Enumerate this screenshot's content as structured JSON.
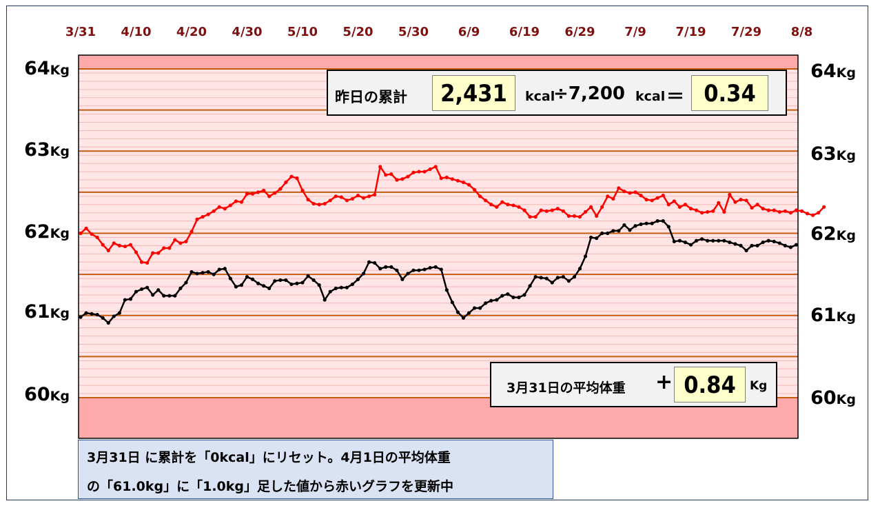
{
  "chart_data": {
    "type": "line",
    "x_tick_labels": [
      "3/31",
      "4/10",
      "4/20",
      "4/30",
      "5/10",
      "5/20",
      "5/30",
      "6/9",
      "6/19",
      "6/29",
      "7/9",
      "7/19",
      "7/29",
      "8/8"
    ],
    "y_tick_labels": [
      "64",
      "63",
      "62",
      "61",
      "60"
    ],
    "y_unit": "Kg",
    "ylim": [
      59.5,
      64.15
    ],
    "x_start": "3/31",
    "grid": true,
    "series": [
      {
        "color": "#ff0000",
        "values": [
          62.0,
          62.06,
          61.99,
          61.95,
          61.86,
          61.79,
          61.88,
          61.85,
          61.84,
          61.86,
          61.77,
          61.65,
          61.64,
          61.76,
          61.76,
          61.82,
          61.82,
          61.92,
          61.88,
          61.9,
          62.02,
          62.17,
          62.2,
          62.23,
          62.27,
          62.32,
          62.3,
          62.34,
          62.39,
          62.38,
          62.48,
          62.48,
          62.5,
          62.52,
          62.45,
          62.49,
          62.54,
          62.62,
          62.69,
          62.67,
          62.52,
          62.41,
          62.36,
          62.35,
          62.36,
          62.4,
          62.45,
          62.44,
          62.4,
          62.42,
          62.46,
          62.43,
          62.45,
          62.47,
          62.81,
          62.71,
          62.72,
          62.65,
          62.66,
          62.69,
          62.74,
          62.75,
          62.75,
          62.78,
          62.81,
          62.67,
          62.68,
          62.66,
          62.64,
          62.62,
          62.59,
          62.53,
          62.45,
          62.4,
          62.35,
          62.32,
          62.38,
          62.35,
          62.34,
          62.32,
          62.28,
          62.2,
          62.2,
          62.28,
          62.27,
          62.28,
          62.3,
          62.27,
          62.21,
          62.21,
          62.2,
          62.26,
          62.32,
          62.21,
          62.32,
          62.45,
          62.42,
          62.55,
          62.51,
          62.49,
          62.5,
          62.46,
          62.41,
          62.4,
          62.43,
          62.46,
          62.35,
          62.39,
          62.32,
          62.35,
          62.3,
          62.28,
          62.25,
          62.26,
          62.27,
          62.37,
          62.26,
          62.47,
          62.38,
          62.41,
          62.4,
          62.31,
          62.35,
          62.3,
          62.28,
          62.28,
          62.26,
          62.27,
          62.25,
          62.28,
          62.27,
          62.24,
          62.22,
          62.25,
          62.32
        ]
      },
      {
        "color": "#000000",
        "values": [
          60.98,
          61.03,
          61.02,
          61.01,
          60.97,
          60.91,
          60.99,
          61.03,
          61.19,
          61.2,
          61.29,
          61.32,
          61.34,
          61.25,
          61.31,
          61.24,
          61.24,
          61.24,
          61.33,
          61.4,
          61.53,
          61.51,
          61.52,
          61.53,
          61.5,
          61.56,
          61.57,
          61.45,
          61.35,
          61.37,
          61.47,
          61.44,
          61.39,
          61.36,
          61.33,
          61.42,
          61.43,
          61.43,
          61.38,
          61.39,
          61.4,
          61.48,
          61.43,
          61.37,
          61.19,
          61.29,
          61.33,
          61.34,
          61.34,
          61.38,
          61.44,
          61.51,
          61.65,
          61.64,
          61.57,
          61.59,
          61.59,
          61.55,
          61.44,
          61.51,
          61.55,
          61.55,
          61.56,
          61.58,
          61.59,
          61.56,
          61.31,
          61.16,
          61.04,
          60.97,
          61.03,
          61.09,
          61.09,
          61.15,
          61.18,
          61.19,
          61.24,
          61.26,
          61.22,
          61.22,
          61.25,
          61.36,
          61.47,
          61.46,
          61.45,
          61.4,
          61.46,
          61.47,
          61.42,
          61.47,
          61.57,
          61.72,
          61.95,
          61.94,
          62.0,
          62.0,
          62.03,
          62.03,
          62.1,
          62.04,
          62.09,
          62.11,
          62.12,
          62.12,
          62.15,
          62.15,
          62.08,
          61.9,
          61.91,
          61.89,
          61.86,
          61.91,
          61.93,
          61.91,
          61.91,
          61.91,
          61.91,
          61.89,
          61.87,
          61.85,
          61.79,
          61.85,
          61.85,
          61.89,
          61.91,
          61.9,
          61.88,
          61.85,
          61.83,
          61.86
        ]
      }
    ]
  },
  "colors": {
    "plot_bg": "#ffe5e5",
    "band_top": "#ffaaaa",
    "band_bottom": "#ffaaaa",
    "major_grid": "#c55a11",
    "minor_grid": "#f4b6b6",
    "x_tick_color": "#7f1010",
    "red_line": "#ff0000",
    "black_line": "#000000"
  },
  "calc_box": {
    "label": "昨日の累計",
    "value": "2,431",
    "unit_kcal": "kcal",
    "divide": "÷7,200",
    "unit_kcal2": "kcal",
    "equals": "＝",
    "result": "0.34"
  },
  "avg_box": {
    "label": "3月31日の平均体重",
    "plus": "+",
    "value": "0.84",
    "unit": "Kg"
  },
  "note": {
    "line1": "3月31日 に累計を「0kcal」にリセット。4月1日の平均体重",
    "line2": "の「61.0kg」に「1.0kg」足した値から赤いグラフを更新中"
  }
}
